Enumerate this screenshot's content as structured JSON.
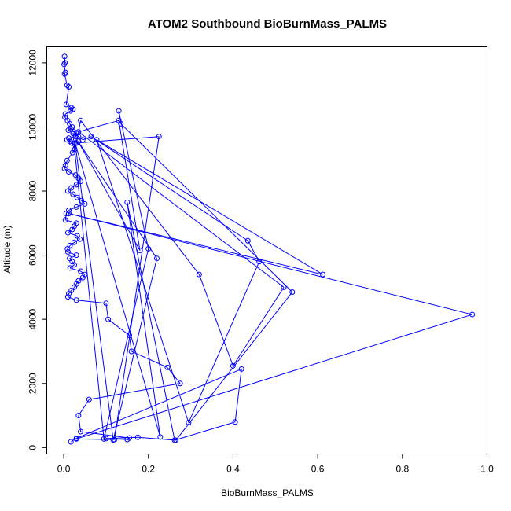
{
  "chart_data": {
    "type": "line",
    "title": "ATOM2 Southbound BioBurnMass_PALMS",
    "xlabel": "BioBurnMass_PALMS",
    "ylabel": "Altitude (m)",
    "xlim": [
      -0.04,
      1.0
    ],
    "ylim": [
      -200,
      12500
    ],
    "x_ticks": [
      0.0,
      0.2,
      0.4,
      0.6,
      0.8,
      1.0
    ],
    "x_tick_labels": [
      "0.0",
      "0.2",
      "0.4",
      "0.6",
      "0.8",
      "1.0"
    ],
    "y_ticks": [
      0,
      2000,
      4000,
      6000,
      8000,
      10000,
      12000
    ],
    "y_tick_labels": [
      "0",
      "2000",
      "4000",
      "6000",
      "8000",
      "10000",
      "12000"
    ],
    "grid": false,
    "legend": "none",
    "marker": "open-circle",
    "series_color": "#0000ff",
    "series": [
      {
        "x": [
          0.002,
          0.003,
          0.001,
          0.004,
          0.002,
          0.008,
          0.012,
          0.006,
          0.018,
          0.022,
          0.016,
          0.004,
          0.003,
          0.009,
          0.014,
          0.02,
          0.017,
          0.011,
          0.024,
          0.03,
          0.028,
          0.012,
          0.008,
          0.015,
          0.019,
          0.026,
          0.021,
          0.008,
          0.004,
          0.002,
          0.012,
          0.028,
          0.035,
          0.04,
          0.03,
          0.018,
          0.01,
          0.022,
          0.032,
          0.042,
          0.05,
          0.03,
          0.012,
          0.006,
          0.004,
          0.03,
          0.025,
          0.02,
          0.01,
          0.032,
          0.038,
          0.025,
          0.015,
          0.009,
          0.01,
          0.03,
          0.014,
          0.02,
          0.025,
          0.015,
          0.04,
          0.05,
          0.045,
          0.035,
          0.03,
          0.025,
          0.018,
          0.012,
          0.01,
          0.03,
          0.1,
          0.105,
          0.155,
          0.16,
          0.245,
          0.275,
          0.06,
          0.035,
          0.04,
          0.155,
          0.15,
          0.1,
          0.175,
          0.265,
          0.54,
          0.135,
          0.13,
          0.2,
          0.095,
          0.022,
          0.035,
          0.045,
          0.065,
          0.435,
          0.462,
          0.295,
          0.078,
          0.612,
          0.012,
          0.965,
          0.03,
          0.12,
          0.225,
          0.03,
          0.04,
          0.32,
          0.4,
          0.52,
          0.035,
          0.13,
          0.18,
          0.034,
          0.22,
          0.117,
          0.027,
          0.228,
          0.15,
          0.262,
          0.405,
          0.42,
          0.03,
          0.017
        ],
        "y": [
          12200,
          12000,
          11950,
          11700,
          11650,
          11300,
          11250,
          10700,
          10600,
          10550,
          10500,
          10400,
          10300,
          10200,
          10100,
          10000,
          9950,
          9900,
          9850,
          9800,
          9700,
          9650,
          9600,
          9550,
          9500,
          9300,
          9200,
          8950,
          8800,
          8700,
          8600,
          8500,
          8400,
          8300,
          8200,
          8100,
          8000,
          7900,
          7800,
          7700,
          7600,
          7500,
          7400,
          7300,
          7100,
          7000,
          6900,
          6800,
          6700,
          6600,
          6500,
          6400,
          6300,
          6200,
          6100,
          6000,
          5900,
          5800,
          5700,
          5600,
          5500,
          5400,
          5300,
          5200,
          5100,
          5000,
          4900,
          4800,
          4700,
          4600,
          4500,
          4000,
          3500,
          3000,
          2500,
          2000,
          1500,
          1000,
          500,
          300,
          250,
          280,
          320,
          230,
          4850,
          10100,
          10500,
          6200,
          270,
          9800,
          9700,
          9600,
          9700,
          6450,
          5800,
          780,
          9600,
          5400,
          7300,
          4150,
          270,
          250,
          9700,
          9500,
          10200,
          5400,
          2550,
          5000,
          9850,
          10200,
          6150,
          9550,
          5900,
          240,
          9500,
          330,
          7650,
          230,
          800,
          2450,
          290,
          180
        ]
      }
    ]
  }
}
